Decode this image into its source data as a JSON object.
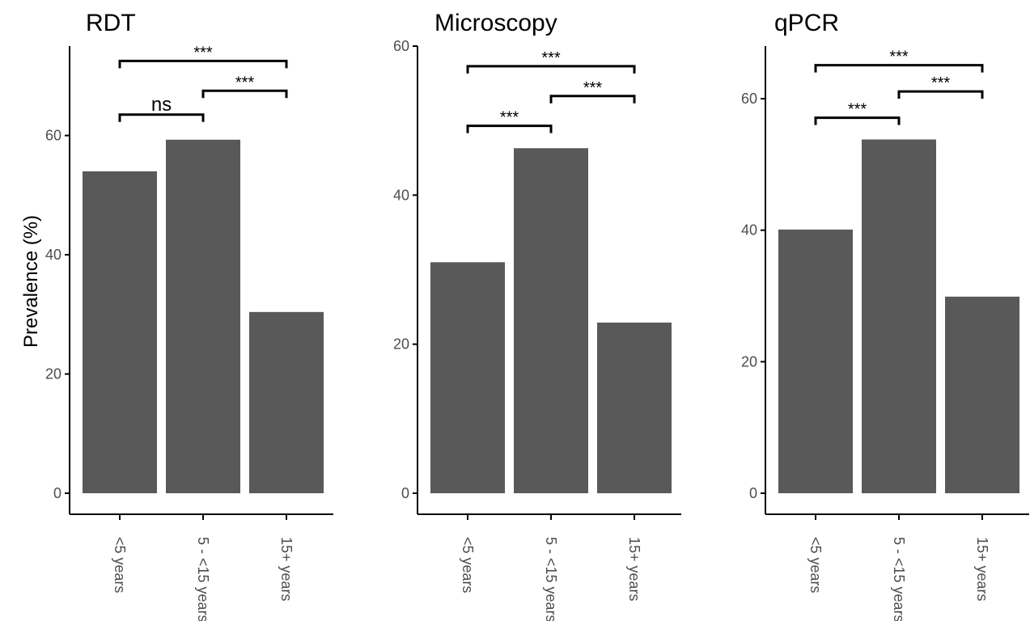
{
  "colors": {
    "bar": "#595959",
    "axis": "#000000",
    "tick_label": "#4d4d4d"
  },
  "y_axis_label": "Prevalence (%)",
  "chart_data": [
    {
      "type": "bar",
      "title": "RDT",
      "categories": [
        "<5 years",
        "5 - <15 years",
        "15+ years"
      ],
      "values": [
        54,
        59.3,
        30.4
      ],
      "ylabel": "Prevalence (%)",
      "ylim": [
        0,
        75
      ],
      "yticks": [
        0,
        20,
        40,
        60
      ],
      "comparisons": [
        {
          "from": 0,
          "to": 1,
          "label": "ns",
          "y": 63.5
        },
        {
          "from": 1,
          "to": 2,
          "label": "***",
          "y": 67.5
        },
        {
          "from": 0,
          "to": 2,
          "label": "***",
          "y": 72.5
        }
      ]
    },
    {
      "type": "bar",
      "title": "Microscopy",
      "categories": [
        "<5 years",
        "5 - <15 years",
        "15+ years"
      ],
      "values": [
        31,
        46.3,
        22.9
      ],
      "ylim": [
        0,
        60
      ],
      "yticks": [
        0,
        20,
        40,
        60
      ],
      "comparisons": [
        {
          "from": 0,
          "to": 1,
          "label": "***",
          "y": 49.3
        },
        {
          "from": 1,
          "to": 2,
          "label": "***",
          "y": 53.3
        },
        {
          "from": 0,
          "to": 2,
          "label": "***",
          "y": 57.3
        }
      ]
    },
    {
      "type": "bar",
      "title": "qPCR",
      "categories": [
        "<5 years",
        "5 - <15 years",
        "15+ years"
      ],
      "values": [
        40.1,
        53.8,
        29.9
      ],
      "ylim": [
        0,
        68
      ],
      "yticks": [
        0,
        20,
        40,
        60
      ],
      "comparisons": [
        {
          "from": 0,
          "to": 1,
          "label": "***",
          "y": 57.1
        },
        {
          "from": 1,
          "to": 2,
          "label": "***",
          "y": 61.1
        },
        {
          "from": 0,
          "to": 2,
          "label": "***",
          "y": 65.1
        }
      ]
    }
  ]
}
